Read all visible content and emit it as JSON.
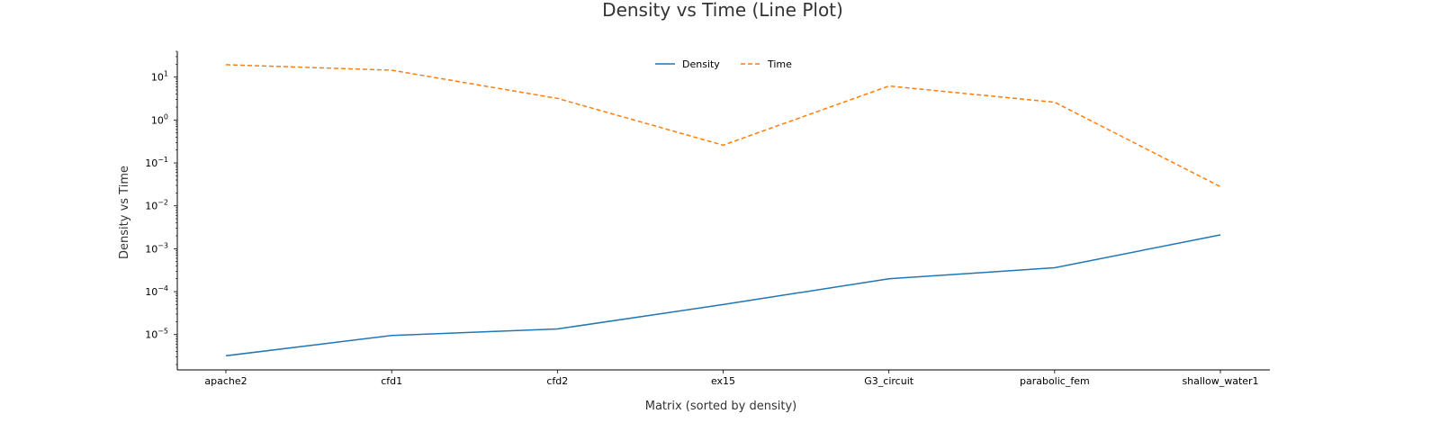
{
  "chart_data": {
    "type": "line",
    "title": "Density vs Time (Line Plot)",
    "xlabel": "Matrix (sorted by density)",
    "ylabel": "Density vs Time",
    "yscale": "log",
    "ylim": [
      1.5e-06,
      40
    ],
    "yticks": [
      {
        "base": "10",
        "exp": "1",
        "value": 10
      },
      {
        "base": "10",
        "exp": "0",
        "value": 1
      },
      {
        "base": "10",
        "exp": "−1",
        "value": 0.1
      },
      {
        "base": "10",
        "exp": "−2",
        "value": 0.01
      },
      {
        "base": "10",
        "exp": "−3",
        "value": 0.001
      },
      {
        "base": "10",
        "exp": "−4",
        "value": 0.0001
      },
      {
        "base": "10",
        "exp": "−5",
        "value": 1e-05
      }
    ],
    "categories": [
      "apache2",
      "cfd1",
      "cfd2",
      "ex15",
      "G3_circuit",
      "parabolic_fem",
      "shallow_water1"
    ],
    "series": [
      {
        "name": "Density",
        "color": "#1f77b4",
        "dash": "solid",
        "values": [
          3.2e-06,
          9.5e-06,
          1.35e-05,
          5e-05,
          0.0002,
          0.00036,
          0.0021
        ]
      },
      {
        "name": "Time",
        "color": "#ff7f0e",
        "dash": "dashed",
        "values": [
          19.5,
          14.5,
          3.2,
          0.26,
          6.2,
          2.6,
          0.028
        ]
      }
    ],
    "legend": "top-center",
    "grid": false
  }
}
